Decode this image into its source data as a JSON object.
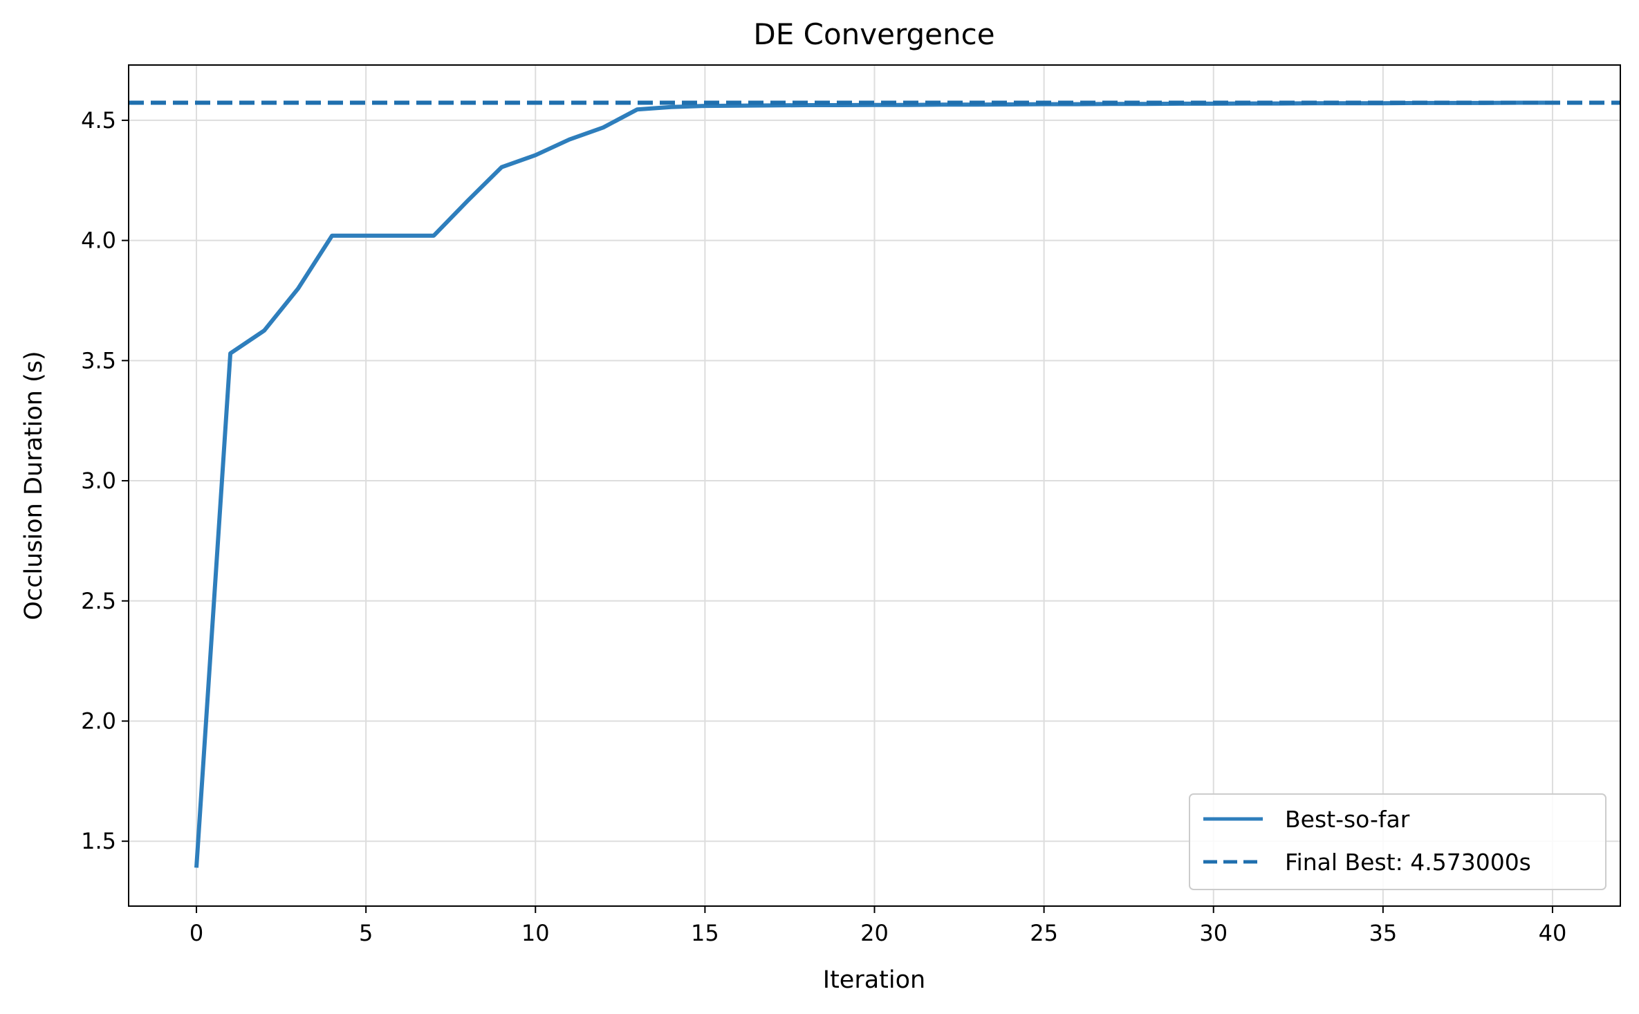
{
  "chart_data": {
    "type": "line",
    "title": "DE Convergence",
    "xlabel": "Iteration",
    "ylabel": "Occlusion Duration (s)",
    "xlim": [
      -2,
      42
    ],
    "ylim": [
      1.23,
      4.73
    ],
    "xticks": [
      0,
      5,
      10,
      15,
      20,
      25,
      30,
      35,
      40
    ],
    "xtick_labels": [
      "0",
      "5",
      "10",
      "15",
      "20",
      "25",
      "30",
      "35",
      "40"
    ],
    "yticks": [
      1.5,
      2.0,
      2.5,
      3.0,
      3.5,
      4.0,
      4.5
    ],
    "ytick_labels": [
      "1.5",
      "2.0",
      "2.5",
      "3.0",
      "3.5",
      "4.0",
      "4.5"
    ],
    "grid": true,
    "legend_position": "lower-right",
    "series": [
      {
        "name": "Best-so-far",
        "style": "solid",
        "color": "#2e7ebc",
        "x": [
          0,
          1,
          2,
          3,
          4,
          5,
          6,
          7,
          8,
          9,
          10,
          11,
          12,
          13,
          14,
          15,
          16,
          17,
          18,
          19,
          20,
          21,
          22,
          23,
          24,
          25,
          26,
          27,
          28,
          29,
          30,
          31,
          32,
          33,
          34,
          35,
          36,
          37,
          38,
          39,
          40
        ],
        "y": [
          1.39,
          3.53,
          3.625,
          3.8,
          4.02,
          4.02,
          4.02,
          4.02,
          4.165,
          4.305,
          4.355,
          4.42,
          4.47,
          4.545,
          4.555,
          4.56,
          4.561,
          4.562,
          4.563,
          4.563,
          4.564,
          4.564,
          4.565,
          4.565,
          4.566,
          4.567,
          4.567,
          4.568,
          4.568,
          4.569,
          4.569,
          4.57,
          4.57,
          4.571,
          4.571,
          4.571,
          4.572,
          4.572,
          4.572,
          4.573,
          4.573
        ]
      },
      {
        "name": "Final Best: 4.573000s",
        "style": "dashed",
        "color": "#1f6fae",
        "y_constant": 4.573
      }
    ]
  }
}
